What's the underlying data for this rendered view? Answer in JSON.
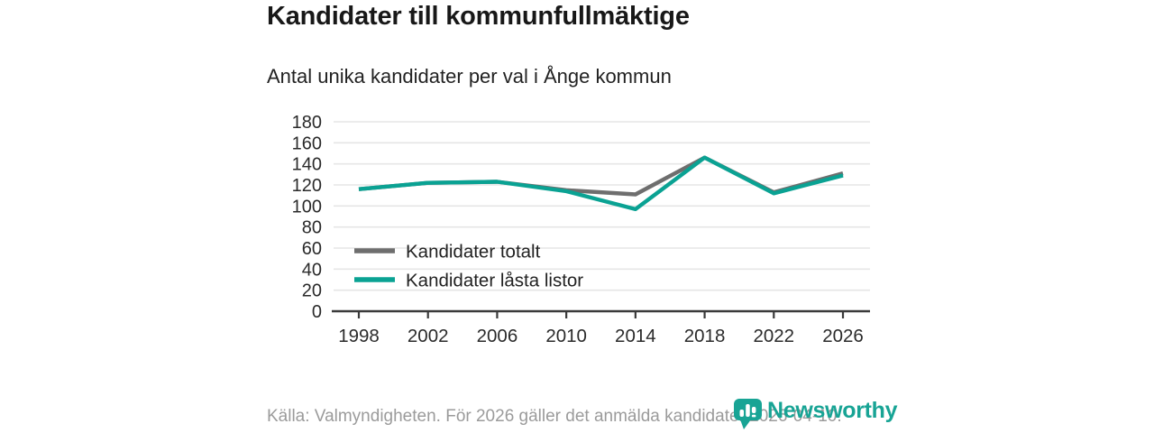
{
  "header": {
    "title": "Kandidater till kommunfullmäktige",
    "subtitle": "Antal unika kandidater per val i Ånge kommun"
  },
  "chart_data": {
    "type": "line",
    "categories": [
      "1998",
      "2002",
      "2006",
      "2010",
      "2014",
      "2018",
      "2022",
      "2026"
    ],
    "series": [
      {
        "name": "Kandidater totalt",
        "color": "#6e6e6e",
        "values": [
          116,
          122,
          123,
          115,
          111,
          146,
          113,
          131
        ]
      },
      {
        "name": "Kandidater låsta listor",
        "color": "#0aa293",
        "values": [
          116,
          122,
          123,
          114,
          97,
          146,
          112,
          129
        ]
      }
    ],
    "title": "Kandidater till kommunfullmäktige",
    "subtitle": "Antal unika kandidater per val i Ånge kommun",
    "xlabel": "",
    "ylabel": "",
    "ylim": [
      0,
      180
    ],
    "ytick_step": 20,
    "grid": "horizontal-only",
    "legend_position": "inside-lower-left"
  },
  "footer": {
    "source": "Källa: Valmyndigheten. För 2026 gäller det anmälda kandidater 2026-04-10."
  },
  "logo": {
    "text": "Newsworthy",
    "color": "#18a495",
    "icon": "bar-chart-speech-bubble"
  },
  "colors": {
    "accent_teal": "#0aa293",
    "line_gray": "#6e6e6e",
    "gridline": "#e6e6e6",
    "axis": "#3a3a3a",
    "tick_label": "#2b2b2b",
    "footer_text": "#9b9b9b"
  }
}
